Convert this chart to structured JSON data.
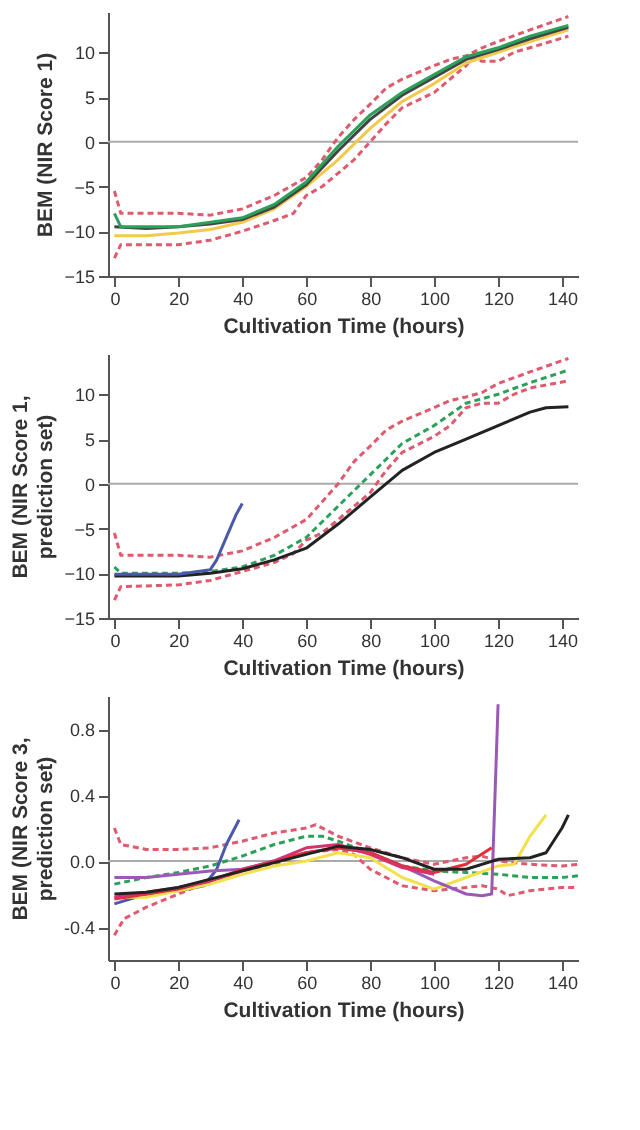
{
  "chart_data": [
    {
      "type": "line",
      "xlabel": "Cultivation Time (hours)",
      "ylabel": "BEM (NIR Score 1)",
      "xlim": [
        -2,
        145
      ],
      "ylim": [
        -15,
        14.5
      ],
      "xticks": [
        0,
        20,
        40,
        60,
        80,
        100,
        120,
        140
      ],
      "yticks": [
        -15,
        -10,
        -5,
        0,
        5,
        10
      ],
      "ref_lines": [
        {
          "axis": "y",
          "value": 0,
          "color": "#aaaaaa"
        }
      ],
      "series": [
        {
          "color": "#e05a6e",
          "line_style": "dashed",
          "x": [
            0,
            2,
            10,
            20,
            30,
            40,
            50,
            60,
            65,
            70,
            75,
            80,
            85,
            90,
            100,
            105,
            110,
            115,
            120,
            130,
            142
          ],
          "values": [
            -5.5,
            -8,
            -8,
            -8,
            -8.2,
            -7.5,
            -6,
            -4,
            -2,
            0.5,
            2.5,
            4.2,
            6,
            7,
            8.5,
            9.2,
            9.6,
            10.5,
            11.2,
            12.5,
            14
          ]
        },
        {
          "color": "#e05a6e",
          "line_style": "dashed",
          "x": [
            0,
            2,
            10,
            20,
            30,
            40,
            50,
            56,
            60,
            65,
            70,
            75,
            80,
            85,
            90,
            100,
            105,
            110,
            112,
            115,
            120,
            125,
            130,
            142
          ],
          "values": [
            -13,
            -11.5,
            -11.5,
            -11.5,
            -11,
            -10,
            -8.8,
            -8,
            -6,
            -5,
            -3.5,
            -2,
            0,
            2,
            3.8,
            5.5,
            7,
            8.5,
            9.4,
            9,
            9,
            10,
            10.5,
            11.8
          ]
        },
        {
          "color": "#f2c94c",
          "line_style": "solid",
          "x": [
            0,
            10,
            20,
            30,
            40,
            50,
            60,
            70,
            80,
            90,
            100,
            110,
            120,
            130,
            142
          ],
          "values": [
            -10.5,
            -10.5,
            -10.2,
            -9.8,
            -9,
            -7.5,
            -5,
            -2,
            1.5,
            4.5,
            6.5,
            8.8,
            10,
            11.2,
            12.5
          ]
        },
        {
          "color": "#444444",
          "line_style": "solid",
          "x": [
            0,
            10,
            20,
            30,
            40,
            50,
            60,
            70,
            80,
            90,
            100,
            110,
            120,
            130,
            142
          ],
          "values": [
            -9.5,
            -9.7,
            -9.5,
            -9.2,
            -8.7,
            -7.3,
            -4.8,
            -1,
            2.5,
            5.2,
            7.2,
            9.2,
            10.3,
            11.5,
            12.8
          ]
        },
        {
          "color": "#2ca05a",
          "line_style": "solid",
          "x": [
            0,
            2,
            10,
            20,
            30,
            40,
            50,
            60,
            70,
            80,
            90,
            100,
            110,
            120,
            130,
            142
          ],
          "values": [
            -8,
            -9.5,
            -9.5,
            -9.5,
            -9,
            -8.5,
            -7,
            -4.5,
            -0.5,
            3,
            5.5,
            7.5,
            9.5,
            10.5,
            11.8,
            13
          ]
        }
      ]
    },
    {
      "type": "line",
      "xlabel": "Cultivation Time (hours)",
      "ylabel": "BEM (NIR Score 1, prediction set)",
      "xlim": [
        -2,
        145
      ],
      "ylim": [
        -15,
        14.5
      ],
      "xticks": [
        0,
        20,
        40,
        60,
        80,
        100,
        120,
        140
      ],
      "yticks": [
        -15,
        -10,
        -5,
        0,
        5,
        10
      ],
      "ref_lines": [
        {
          "axis": "y",
          "value": 0,
          "color": "#aaaaaa"
        }
      ],
      "series": [
        {
          "color": "#e05a6e",
          "line_style": "dashed",
          "x": [
            0,
            2,
            20,
            30,
            40,
            50,
            60,
            65,
            70,
            75,
            80,
            85,
            90,
            100,
            105,
            110,
            115,
            120,
            130,
            142
          ],
          "values": [
            -5.5,
            -8,
            -8,
            -8.2,
            -7.5,
            -6,
            -4,
            -2,
            0,
            2.5,
            4.2,
            6,
            7,
            8.5,
            9.3,
            9.7,
            10.2,
            11.2,
            12.5,
            14
          ]
        },
        {
          "color": "#e05a6e",
          "line_style": "dashed",
          "x": [
            0,
            2,
            20,
            30,
            40,
            50,
            56,
            60,
            65,
            70,
            80,
            85,
            90,
            100,
            105,
            110,
            115,
            120,
            125,
            130,
            142
          ],
          "values": [
            -13,
            -11.5,
            -11.3,
            -10.8,
            -9.8,
            -8.8,
            -7.8,
            -6.3,
            -5.5,
            -4,
            -1,
            1.5,
            3.5,
            5.3,
            6.5,
            8.5,
            9,
            9,
            10,
            10.7,
            11.5
          ]
        },
        {
          "color": "#2ca05a",
          "line_style": "dashed",
          "x": [
            0,
            2,
            10,
            20,
            30,
            40,
            50,
            60,
            70,
            80,
            90,
            100,
            110,
            120,
            130,
            142
          ],
          "values": [
            -9.3,
            -10,
            -10,
            -10,
            -9.8,
            -9.3,
            -8,
            -6,
            -2.5,
            1,
            4.5,
            6.5,
            9,
            10,
            11.3,
            12.7
          ]
        },
        {
          "color": "#222222",
          "line_style": "solid",
          "x": [
            0,
            10,
            20,
            30,
            40,
            50,
            60,
            70,
            80,
            90,
            100,
            110,
            120,
            130,
            135,
            142
          ],
          "values": [
            -10.3,
            -10.3,
            -10.3,
            -10,
            -9.5,
            -8.5,
            -7.2,
            -4.5,
            -1.5,
            1.5,
            3.5,
            5,
            6.5,
            8,
            8.5,
            8.6
          ]
        },
        {
          "color": "#4a5aa8",
          "line_style": "solid",
          "x": [
            0,
            20,
            30,
            32,
            35,
            38,
            40
          ],
          "values": [
            -10.1,
            -10.1,
            -9.6,
            -8.5,
            -6,
            -3.5,
            -2.2
          ]
        }
      ]
    },
    {
      "type": "line",
      "xlabel": "Cultivation Time (hours)",
      "ylabel": "BEM (NIR Score 3, prediction set)",
      "xlim": [
        -2,
        145
      ],
      "ylim": [
        -0.6,
        1.0
      ],
      "xticks": [
        0,
        20,
        40,
        60,
        80,
        100,
        120,
        140
      ],
      "yticks": [
        {
          "value": -0.4,
          "label": "-0.4"
        },
        {
          "value": 0,
          "label": "0.0"
        },
        {
          "value": 0.4,
          "label": "0.4"
        },
        {
          "value": 0.8,
          "label": "0.8"
        }
      ],
      "ref_lines": [
        {
          "axis": "y",
          "value": 0,
          "color": "#aaaaaa"
        }
      ],
      "series": [
        {
          "color": "#e05a6e",
          "line_style": "dashed",
          "x": [
            0,
            2,
            10,
            20,
            30,
            40,
            50,
            60,
            63,
            70,
            80,
            90,
            100,
            110,
            115,
            120,
            130,
            140,
            145
          ],
          "values": [
            0.2,
            0.1,
            0.07,
            0.07,
            0.08,
            0.12,
            0.17,
            0.2,
            0.22,
            0.15,
            0.08,
            0.02,
            -0.02,
            0.02,
            0.03,
            0.0,
            -0.02,
            -0.03,
            -0.02
          ]
        },
        {
          "color": "#e05a6e",
          "line_style": "dashed",
          "x": [
            0,
            3,
            10,
            20,
            30,
            40,
            50,
            60,
            70,
            75,
            80,
            85,
            90,
            100,
            110,
            115,
            120,
            123,
            130,
            140,
            145
          ],
          "values": [
            -0.45,
            -0.35,
            -0.28,
            -0.2,
            -0.12,
            -0.06,
            -0.02,
            0.05,
            0.07,
            0.04,
            -0.05,
            -0.1,
            -0.15,
            -0.18,
            -0.16,
            -0.15,
            -0.17,
            -0.21,
            -0.18,
            -0.16,
            -0.16
          ]
        },
        {
          "color": "#2ca05a",
          "line_style": "dashed",
          "x": [
            0,
            10,
            20,
            30,
            40,
            50,
            60,
            65,
            70,
            80,
            90,
            100,
            110,
            120,
            130,
            140,
            145
          ],
          "values": [
            -0.14,
            -0.1,
            -0.07,
            -0.03,
            0.03,
            0.1,
            0.15,
            0.15,
            0.12,
            0.05,
            -0.03,
            -0.06,
            -0.07,
            -0.08,
            -0.1,
            -0.1,
            -0.09
          ]
        },
        {
          "color": "#4a5aa8",
          "line_style": "solid",
          "x": [
            0,
            10,
            20,
            28,
            32,
            35,
            39
          ],
          "values": [
            -0.26,
            -0.2,
            -0.18,
            -0.15,
            -0.05,
            0.1,
            0.25
          ]
        },
        {
          "color": "#f2e14c",
          "line_style": "solid",
          "x": [
            0,
            10,
            20,
            30,
            40,
            50,
            60,
            70,
            80,
            90,
            100,
            110,
            120,
            125,
            130,
            135
          ],
          "values": [
            -0.22,
            -0.22,
            -0.18,
            -0.14,
            -0.08,
            -0.03,
            0.0,
            0.05,
            0.02,
            -0.1,
            -0.17,
            -0.1,
            -0.03,
            -0.02,
            0.15,
            0.28
          ]
        },
        {
          "color": "#9b59b6",
          "line_style": "solid",
          "x": [
            0,
            10,
            20,
            30,
            40,
            50,
            60,
            70,
            80,
            90,
            100,
            110,
            115,
            118,
            120
          ],
          "values": [
            -0.1,
            -0.1,
            -0.08,
            -0.06,
            -0.05,
            0.0,
            0.05,
            0.08,
            0.05,
            -0.03,
            -0.12,
            -0.2,
            -0.21,
            -0.2,
            0.95
          ]
        },
        {
          "color": "#e0303a",
          "line_style": "solid",
          "x": [
            0,
            10,
            20,
            30,
            40,
            50,
            60,
            70,
            80,
            90,
            100,
            110,
            118
          ],
          "values": [
            -0.23,
            -0.2,
            -0.17,
            -0.12,
            -0.06,
            0.0,
            0.05,
            0.08,
            0.05,
            -0.03,
            -0.07,
            -0.02,
            0.08
          ]
        },
        {
          "color": "#d6336c",
          "line_style": "solid",
          "x": [
            0,
            20,
            30,
            40,
            50,
            60,
            70,
            80,
            90,
            100
          ],
          "values": [
            -0.22,
            -0.16,
            -0.12,
            -0.05,
            0.0,
            0.08,
            0.1,
            0.04,
            -0.04,
            -0.08
          ]
        },
        {
          "color": "#222222",
          "line_style": "solid",
          "x": [
            0,
            10,
            20,
            30,
            40,
            50,
            60,
            70,
            80,
            90,
            100,
            110,
            120,
            130,
            135,
            140,
            142
          ],
          "values": [
            -0.2,
            -0.19,
            -0.16,
            -0.11,
            -0.06,
            -0.01,
            0.04,
            0.09,
            0.07,
            0.02,
            -0.05,
            -0.05,
            0.01,
            0.02,
            0.05,
            0.2,
            0.28
          ]
        }
      ]
    }
  ]
}
